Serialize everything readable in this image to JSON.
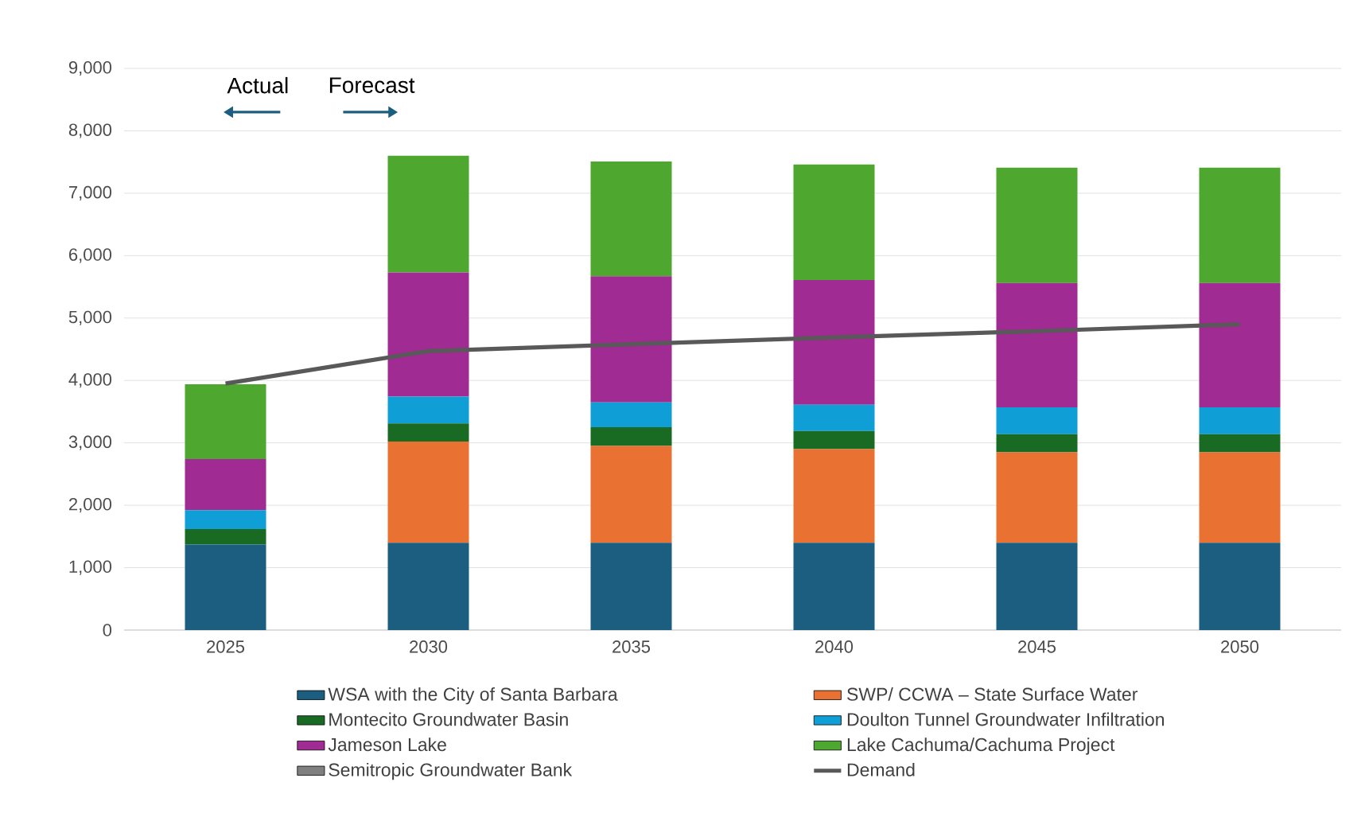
{
  "chart_data": {
    "type": "bar",
    "stacked": true,
    "categories": [
      "2025",
      "2030",
      "2035",
      "2040",
      "2045",
      "2050"
    ],
    "series": [
      {
        "name": "WSA with the City of Santa Barbara",
        "color": "#1b5e80",
        "values": [
          1370,
          1400,
          1400,
          1400,
          1400,
          1400
        ]
      },
      {
        "name": "SWP/ CCWA – State Surface Water",
        "color": "#e97132",
        "values": [
          0,
          1620,
          1550,
          1500,
          1450,
          1450
        ]
      },
      {
        "name": "Montecito Groundwater Basin",
        "color": "#196b24",
        "values": [
          250,
          290,
          300,
          290,
          290,
          290
        ]
      },
      {
        "name": "Doulton Tunnel Groundwater Infiltration",
        "color": "#0f9ed5",
        "values": [
          300,
          430,
          400,
          420,
          430,
          430
        ]
      },
      {
        "name": "Jameson Lake",
        "color": "#a02b93",
        "values": [
          820,
          1990,
          2020,
          2000,
          1990,
          1990
        ]
      },
      {
        "name": "Lake Cachuma/Cachuma Project",
        "color": "#4ea72e",
        "values": [
          1200,
          1870,
          1840,
          1850,
          1850,
          1850
        ]
      },
      {
        "name": "Semitropic Groundwater Bank",
        "color": "#808080",
        "values": [
          0,
          0,
          0,
          0,
          0,
          0
        ]
      },
      {
        "name": "Demand",
        "type": "line",
        "color": "#595959",
        "values": [
          3950,
          4470,
          4580,
          4690,
          4790,
          4900
        ]
      }
    ],
    "ylim": [
      0,
      9000
    ],
    "yticks": [
      0,
      {
        "value": 1000,
        "label": "1,000"
      },
      {
        "value": 2000,
        "label": "2,000"
      },
      {
        "value": 3000,
        "label": "3,000"
      },
      {
        "value": 4000,
        "label": "4,000"
      },
      {
        "value": 5000,
        "label": "5,000"
      },
      {
        "value": 6000,
        "label": "6,000"
      },
      {
        "value": 7000,
        "label": "7,000"
      },
      {
        "value": 8000,
        "label": "8,000"
      },
      {
        "value": 9000,
        "label": "9,000"
      }
    ],
    "grid": "y",
    "legend": "bottom",
    "annotations": [
      "Actual",
      "Forecast"
    ]
  }
}
